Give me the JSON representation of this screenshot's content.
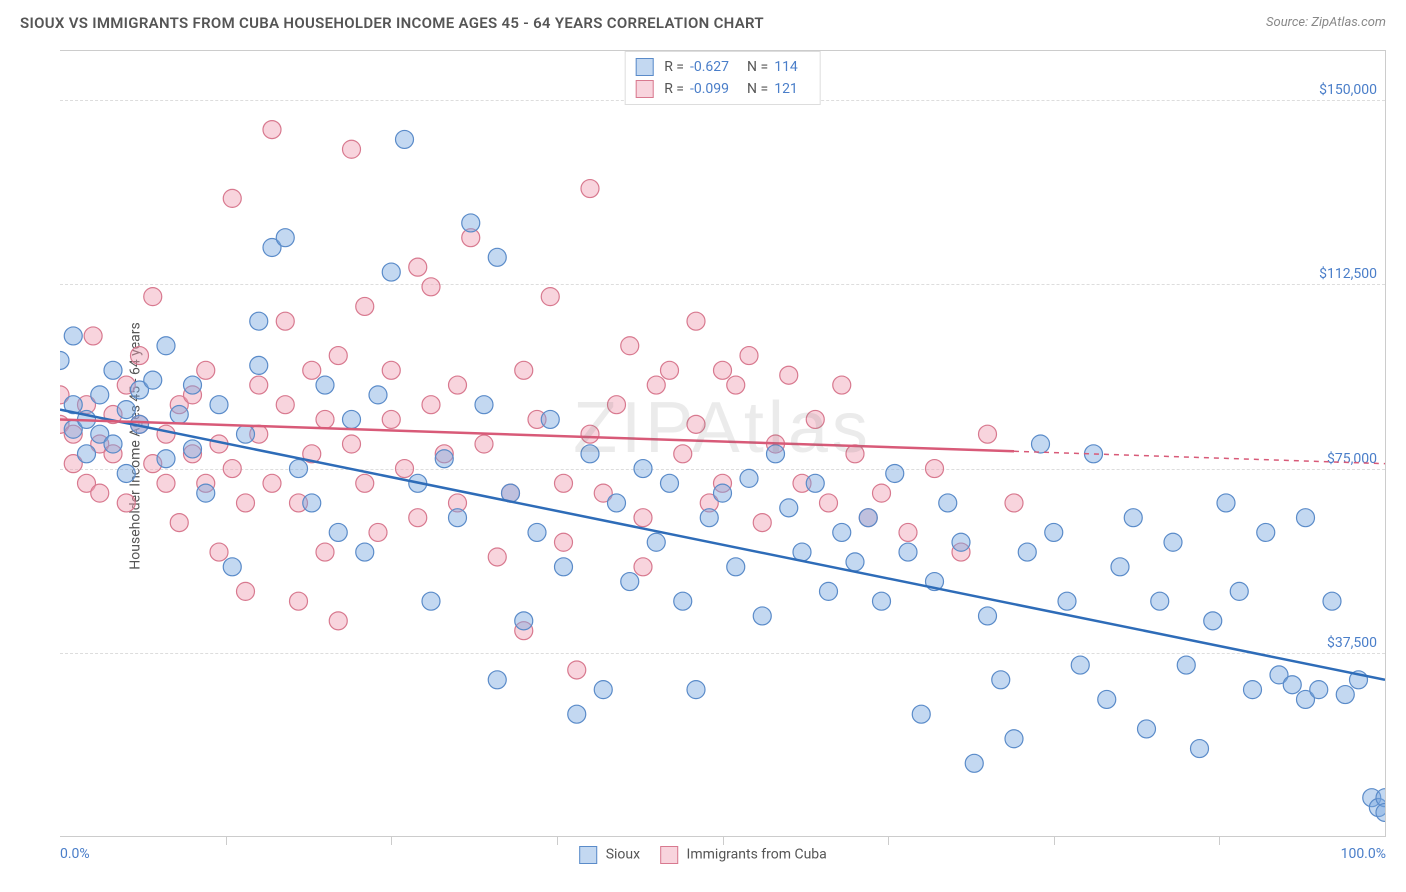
{
  "title": "SIOUX VS IMMIGRANTS FROM CUBA HOUSEHOLDER INCOME AGES 45 - 64 YEARS CORRELATION CHART",
  "source": "Source: ZipAtlas.com",
  "y_axis_label": "Householder Income Ages 45 - 64 years",
  "watermark": "ZIPAtlas",
  "x_min_label": "0.0%",
  "x_max_label": "100.0%",
  "chart": {
    "type": "scatter",
    "xlim": [
      0,
      100
    ],
    "ylim": [
      0,
      160000
    ],
    "y_ticks": [
      {
        "value": 37500,
        "label": "$37,500"
      },
      {
        "value": 75000,
        "label": "$75,000"
      },
      {
        "value": 112500,
        "label": "$112,500"
      },
      {
        "value": 150000,
        "label": "$150,000"
      }
    ],
    "x_tick_step": 12.5,
    "background_color": "#ffffff",
    "grid_color": "#dddddd",
    "marker_radius": 9,
    "marker_stroke_width": 1.2,
    "line_width": 2.5,
    "series": [
      {
        "name": "Sioux",
        "fill_color": "rgba(122,168,224,0.45)",
        "stroke_color": "#5a8bc9",
        "line_color": "#2e6cb8",
        "R": "-0.627",
        "N": "114",
        "trend": {
          "x1": 0,
          "y1": 87000,
          "x2": 100,
          "y2": 32000,
          "solid_to_x": 100
        },
        "points": [
          [
            0,
            97000
          ],
          [
            1,
            88000
          ],
          [
            1,
            83000
          ],
          [
            1,
            102000
          ],
          [
            2,
            85000
          ],
          [
            2,
            78000
          ],
          [
            3,
            90000
          ],
          [
            3,
            82000
          ],
          [
            4,
            95000
          ],
          [
            4,
            80000
          ],
          [
            5,
            87000
          ],
          [
            5,
            74000
          ],
          [
            6,
            91000
          ],
          [
            6,
            84000
          ],
          [
            7,
            93000
          ],
          [
            8,
            77000
          ],
          [
            8,
            100000
          ],
          [
            9,
            86000
          ],
          [
            10,
            79000
          ],
          [
            10,
            92000
          ],
          [
            11,
            70000
          ],
          [
            12,
            88000
          ],
          [
            13,
            55000
          ],
          [
            14,
            82000
          ],
          [
            15,
            96000
          ],
          [
            15,
            105000
          ],
          [
            16,
            120000
          ],
          [
            17,
            122000
          ],
          [
            18,
            75000
          ],
          [
            19,
            68000
          ],
          [
            20,
            92000
          ],
          [
            21,
            62000
          ],
          [
            22,
            85000
          ],
          [
            23,
            58000
          ],
          [
            24,
            90000
          ],
          [
            25,
            115000
          ],
          [
            26,
            142000
          ],
          [
            27,
            72000
          ],
          [
            28,
            48000
          ],
          [
            29,
            77000
          ],
          [
            30,
            65000
          ],
          [
            31,
            125000
          ],
          [
            32,
            88000
          ],
          [
            33,
            118000
          ],
          [
            33,
            32000
          ],
          [
            34,
            70000
          ],
          [
            35,
            44000
          ],
          [
            36,
            62000
          ],
          [
            37,
            85000
          ],
          [
            38,
            55000
          ],
          [
            39,
            25000
          ],
          [
            40,
            78000
          ],
          [
            41,
            30000
          ],
          [
            42,
            68000
          ],
          [
            43,
            52000
          ],
          [
            44,
            75000
          ],
          [
            45,
            60000
          ],
          [
            46,
            72000
          ],
          [
            47,
            48000
          ],
          [
            48,
            30000
          ],
          [
            49,
            65000
          ],
          [
            50,
            70000
          ],
          [
            51,
            55000
          ],
          [
            52,
            73000
          ],
          [
            53,
            45000
          ],
          [
            54,
            78000
          ],
          [
            55,
            67000
          ],
          [
            56,
            58000
          ],
          [
            57,
            72000
          ],
          [
            58,
            50000
          ],
          [
            59,
            62000
          ],
          [
            60,
            56000
          ],
          [
            61,
            65000
          ],
          [
            62,
            48000
          ],
          [
            63,
            74000
          ],
          [
            64,
            58000
          ],
          [
            65,
            25000
          ],
          [
            66,
            52000
          ],
          [
            67,
            68000
          ],
          [
            68,
            60000
          ],
          [
            69,
            15000
          ],
          [
            70,
            45000
          ],
          [
            71,
            32000
          ],
          [
            72,
            20000
          ],
          [
            73,
            58000
          ],
          [
            74,
            80000
          ],
          [
            75,
            62000
          ],
          [
            76,
            48000
          ],
          [
            77,
            35000
          ],
          [
            78,
            78000
          ],
          [
            79,
            28000
          ],
          [
            80,
            55000
          ],
          [
            81,
            65000
          ],
          [
            82,
            22000
          ],
          [
            83,
            48000
          ],
          [
            84,
            60000
          ],
          [
            85,
            35000
          ],
          [
            86,
            18000
          ],
          [
            87,
            44000
          ],
          [
            88,
            68000
          ],
          [
            89,
            50000
          ],
          [
            90,
            30000
          ],
          [
            91,
            62000
          ],
          [
            92,
            33000
          ],
          [
            93,
            31000
          ],
          [
            94,
            28000
          ],
          [
            94,
            65000
          ],
          [
            95,
            30000
          ],
          [
            96,
            48000
          ],
          [
            97,
            29000
          ],
          [
            98,
            32000
          ],
          [
            99,
            8000
          ],
          [
            99.5,
            6000
          ],
          [
            100,
            8000
          ],
          [
            100,
            5000
          ]
        ]
      },
      {
        "name": "Immigrants from Cuba",
        "fill_color": "rgba(240,160,180,0.45)",
        "stroke_color": "#d8798f",
        "line_color": "#d85a78",
        "R": "-0.099",
        "N": "121",
        "trend": {
          "x1": 0,
          "y1": 85000,
          "x2": 100,
          "y2": 76000,
          "solid_to_x": 72
        },
        "points": [
          [
            0,
            84000
          ],
          [
            0,
            90000
          ],
          [
            1,
            82000
          ],
          [
            1,
            76000
          ],
          [
            2,
            88000
          ],
          [
            2,
            72000
          ],
          [
            2.5,
            102000
          ],
          [
            3,
            80000
          ],
          [
            3,
            70000
          ],
          [
            4,
            86000
          ],
          [
            4,
            78000
          ],
          [
            5,
            92000
          ],
          [
            5,
            68000
          ],
          [
            6,
            84000
          ],
          [
            6,
            98000
          ],
          [
            7,
            76000
          ],
          [
            7,
            110000
          ],
          [
            8,
            82000
          ],
          [
            8,
            72000
          ],
          [
            9,
            88000
          ],
          [
            9,
            64000
          ],
          [
            10,
            90000
          ],
          [
            10,
            78000
          ],
          [
            11,
            72000
          ],
          [
            11,
            95000
          ],
          [
            12,
            80000
          ],
          [
            12,
            58000
          ],
          [
            13,
            75000
          ],
          [
            13,
            130000
          ],
          [
            14,
            68000
          ],
          [
            14,
            50000
          ],
          [
            15,
            92000
          ],
          [
            15,
            82000
          ],
          [
            16,
            144000
          ],
          [
            16,
            72000
          ],
          [
            17,
            105000
          ],
          [
            17,
            88000
          ],
          [
            18,
            68000
          ],
          [
            18,
            48000
          ],
          [
            19,
            95000
          ],
          [
            19,
            78000
          ],
          [
            20,
            85000
          ],
          [
            20,
            58000
          ],
          [
            21,
            44000
          ],
          [
            21,
            98000
          ],
          [
            22,
            140000
          ],
          [
            22,
            80000
          ],
          [
            23,
            72000
          ],
          [
            23,
            108000
          ],
          [
            24,
            62000
          ],
          [
            25,
            85000
          ],
          [
            25,
            95000
          ],
          [
            26,
            75000
          ],
          [
            27,
            116000
          ],
          [
            27,
            65000
          ],
          [
            28,
            112000
          ],
          [
            28,
            88000
          ],
          [
            29,
            78000
          ],
          [
            30,
            92000
          ],
          [
            30,
            68000
          ],
          [
            31,
            122000
          ],
          [
            32,
            80000
          ],
          [
            33,
            57000
          ],
          [
            34,
            70000
          ],
          [
            35,
            95000
          ],
          [
            35,
            42000
          ],
          [
            36,
            85000
          ],
          [
            37,
            110000
          ],
          [
            38,
            72000
          ],
          [
            38,
            60000
          ],
          [
            39,
            34000
          ],
          [
            40,
            82000
          ],
          [
            40,
            132000
          ],
          [
            41,
            70000
          ],
          [
            42,
            88000
          ],
          [
            43,
            100000
          ],
          [
            44,
            65000
          ],
          [
            44,
            55000
          ],
          [
            45,
            92000
          ],
          [
            46,
            95000
          ],
          [
            47,
            78000
          ],
          [
            48,
            84000
          ],
          [
            48,
            105000
          ],
          [
            49,
            68000
          ],
          [
            50,
            95000
          ],
          [
            50,
            72000
          ],
          [
            51,
            92000
          ],
          [
            52,
            98000
          ],
          [
            53,
            64000
          ],
          [
            54,
            80000
          ],
          [
            55,
            94000
          ],
          [
            56,
            72000
          ],
          [
            57,
            85000
          ],
          [
            58,
            68000
          ],
          [
            59,
            92000
          ],
          [
            60,
            78000
          ],
          [
            61,
            65000
          ],
          [
            62,
            70000
          ],
          [
            64,
            62000
          ],
          [
            66,
            75000
          ],
          [
            68,
            58000
          ],
          [
            70,
            82000
          ],
          [
            72,
            68000
          ]
        ]
      }
    ]
  },
  "colors": {
    "title_text": "#555555",
    "source_text": "#888888",
    "axis_value_text": "#4a7ec9",
    "axis_label_text": "#555555"
  }
}
